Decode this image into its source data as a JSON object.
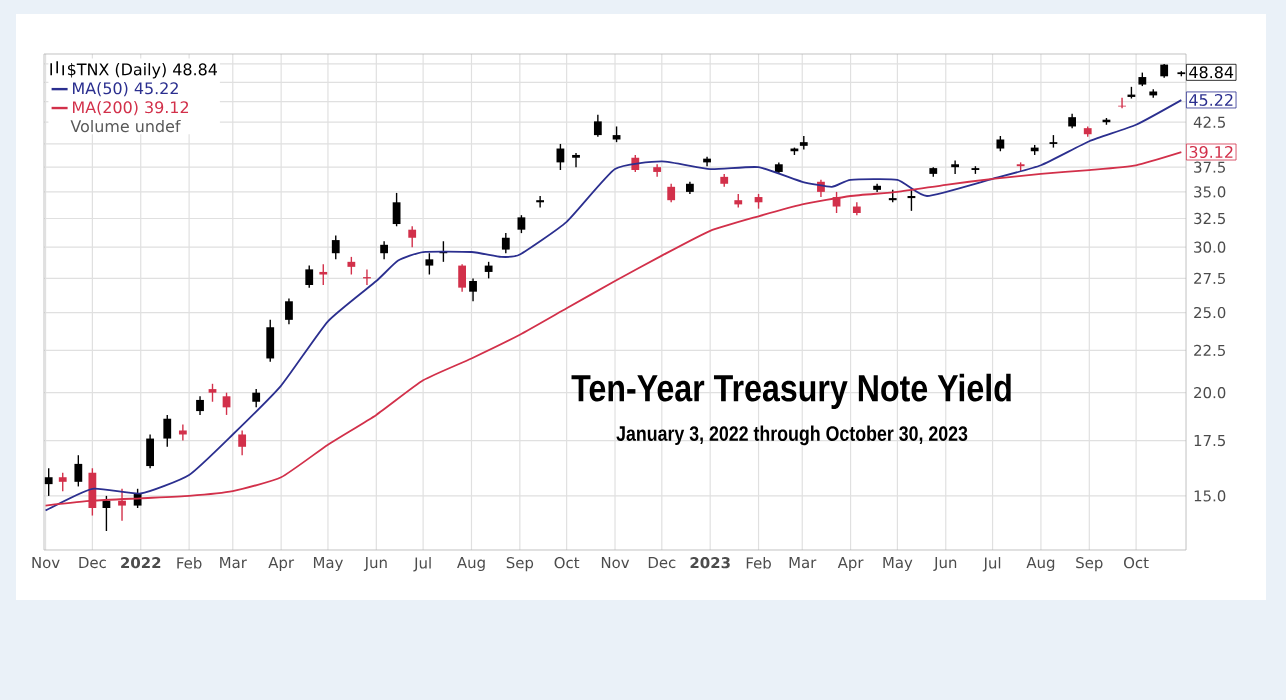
{
  "chart_data": {
    "type": "candlestick",
    "title": "Ten-Year Treasury Note Yield",
    "subtitle": "January 3, 2022 through October 30, 2023",
    "log": "y",
    "grid": true,
    "legend": "top left",
    "xlim": [
      "2021-10-31",
      "2023-11-02"
    ],
    "ylim": [
      12.9,
      51.4
    ],
    "xticks": [
      {
        "value": "2021-11-01",
        "label": "Nov"
      },
      {
        "value": "2021-12-01",
        "label": "Dec"
      },
      {
        "value": "2022-01-01",
        "label": "2022"
      },
      {
        "value": "2022-02-01",
        "label": "Feb"
      },
      {
        "value": "2022-03-01",
        "label": "Mar"
      },
      {
        "value": "2022-04-01",
        "label": "Apr"
      },
      {
        "value": "2022-05-01",
        "label": "May"
      },
      {
        "value": "2022-06-01",
        "label": "Jun"
      },
      {
        "value": "2022-07-01",
        "label": "Jul"
      },
      {
        "value": "2022-08-01",
        "label": "Aug"
      },
      {
        "value": "2022-09-01",
        "label": "Sep"
      },
      {
        "value": "2022-10-01",
        "label": "Oct"
      },
      {
        "value": "2022-11-01",
        "label": "Nov"
      },
      {
        "value": "2022-12-01",
        "label": "Dec"
      },
      {
        "value": "2023-01-01",
        "label": "2023"
      },
      {
        "value": "2023-02-01",
        "label": "Feb"
      },
      {
        "value": "2023-03-01",
        "label": "Mar"
      },
      {
        "value": "2023-04-01",
        "label": "Apr"
      },
      {
        "value": "2023-05-01",
        "label": "May"
      },
      {
        "value": "2023-06-01",
        "label": "Jun"
      },
      {
        "value": "2023-07-01",
        "label": "Jul"
      },
      {
        "value": "2023-08-01",
        "label": "Aug"
      },
      {
        "value": "2023-09-01",
        "label": "Sep"
      },
      {
        "value": "2023-10-01",
        "label": "Oct"
      }
    ],
    "yticks": [
      {
        "value": 15,
        "label": "15.0"
      },
      {
        "value": 17.5,
        "label": "17.5"
      },
      {
        "value": 20,
        "label": "20.0"
      },
      {
        "value": 22.5,
        "label": "22.5"
      },
      {
        "value": 25,
        "label": "25.0"
      },
      {
        "value": 27.5,
        "label": "27.5"
      },
      {
        "value": 30,
        "label": "30.0"
      },
      {
        "value": 32.5,
        "label": "32.5"
      },
      {
        "value": 35,
        "label": "35.0"
      },
      {
        "value": 37.5,
        "label": "37.5"
      },
      {
        "value": 40,
        "label": null
      },
      {
        "value": 42.5,
        "label": "42.5"
      },
      {
        "value": 45,
        "label": null
      },
      {
        "value": 47.5,
        "label": null
      },
      {
        "value": 50,
        "label": null
      }
    ],
    "annotations": [
      {
        "text": "48.84",
        "x": "2023-10-30",
        "y": 48.84
      },
      {
        "text": "45.22",
        "x": "2023-10-30",
        "y": 45.22
      },
      {
        "text": "39.12",
        "x": "2023-10-30",
        "y": 39.12
      },
      "Volume undef"
    ],
    "series": [
      {
        "name": "$TNX (Daily) 48.84",
        "x": [
          "2021-11-03",
          "2021-11-12",
          "2021-11-22",
          "2021-12-01",
          "2021-12-10",
          "2021-12-20",
          "2021-12-30",
          "2022-01-07",
          "2022-01-18",
          "2022-01-28",
          "2022-02-08",
          "2022-02-16",
          "2022-02-25",
          "2022-03-07",
          "2022-03-16",
          "2022-03-25",
          "2022-04-06",
          "2022-04-19",
          "2022-04-28",
          "2022-05-06",
          "2022-05-16",
          "2022-05-26",
          "2022-06-06",
          "2022-06-14",
          "2022-06-24",
          "2022-07-05",
          "2022-07-14",
          "2022-07-26",
          "2022-08-02",
          "2022-08-12",
          "2022-08-23",
          "2022-09-02",
          "2022-09-14",
          "2022-09-27",
          "2022-10-07",
          "2022-10-21",
          "2022-11-02",
          "2022-11-14",
          "2022-11-28",
          "2022-12-07",
          "2022-12-19",
          "2022-12-30",
          "2023-01-10",
          "2023-01-19",
          "2023-02-01",
          "2023-02-14",
          "2023-02-24",
          "2023-03-02",
          "2023-03-13",
          "2023-03-23",
          "2023-04-05",
          "2023-04-18",
          "2023-04-28",
          "2023-05-10",
          "2023-05-24",
          "2023-06-07",
          "2023-06-20",
          "2023-07-06",
          "2023-07-19",
          "2023-07-28",
          "2023-08-09",
          "2023-08-21",
          "2023-08-31",
          "2023-09-12",
          "2023-09-22",
          "2023-09-28",
          "2023-10-05",
          "2023-10-12",
          "2023-10-19",
          "2023-10-30"
        ],
        "ohlc": [
          [
            15.5,
            16.2,
            15.0,
            15.8
          ],
          [
            15.8,
            16.0,
            15.2,
            15.6
          ],
          [
            15.6,
            16.8,
            15.4,
            16.4
          ],
          [
            16.0,
            16.2,
            14.2,
            14.5
          ],
          [
            14.5,
            15.0,
            13.6,
            14.8
          ],
          [
            14.8,
            15.3,
            14.0,
            14.6
          ],
          [
            14.6,
            15.3,
            14.5,
            15.1
          ],
          [
            16.3,
            17.8,
            16.2,
            17.6
          ],
          [
            17.6,
            18.8,
            17.2,
            18.6
          ],
          [
            18.0,
            18.3,
            17.5,
            17.8
          ],
          [
            19.0,
            19.8,
            18.8,
            19.6
          ],
          [
            20.2,
            20.5,
            19.5,
            20.0
          ],
          [
            19.8,
            20.0,
            18.8,
            19.2
          ],
          [
            17.8,
            18.0,
            16.8,
            17.2
          ],
          [
            19.5,
            20.2,
            19.2,
            20.0
          ],
          [
            22.0,
            24.5,
            21.8,
            24.0
          ],
          [
            24.5,
            26.0,
            24.2,
            25.8
          ],
          [
            27.0,
            28.5,
            26.8,
            28.2
          ],
          [
            28.0,
            28.6,
            27.0,
            27.8
          ],
          [
            29.5,
            31.0,
            29.0,
            30.6
          ],
          [
            28.8,
            29.2,
            27.8,
            28.4
          ],
          [
            27.6,
            28.2,
            27.0,
            27.5
          ],
          [
            29.5,
            30.5,
            29.0,
            30.2
          ],
          [
            32.0,
            34.9,
            31.8,
            34.0
          ],
          [
            31.5,
            31.8,
            30.0,
            30.8
          ],
          [
            28.5,
            29.5,
            27.8,
            29.0
          ],
          [
            29.5,
            30.5,
            28.8,
            29.6
          ],
          [
            28.5,
            28.6,
            26.5,
            26.8
          ],
          [
            26.5,
            27.5,
            25.8,
            27.3
          ],
          [
            28.0,
            28.8,
            27.5,
            28.5
          ],
          [
            29.8,
            31.2,
            29.5,
            30.8
          ],
          [
            31.5,
            32.8,
            31.2,
            32.6
          ],
          [
            34.0,
            34.6,
            33.5,
            34.2
          ],
          [
            38.0,
            40.0,
            37.2,
            39.5
          ],
          [
            38.5,
            39.0,
            37.5,
            38.8
          ],
          [
            41.0,
            43.4,
            40.8,
            42.6
          ],
          [
            40.5,
            42.0,
            40.2,
            41.0
          ],
          [
            38.5,
            38.8,
            37.0,
            37.2
          ],
          [
            37.5,
            37.8,
            36.5,
            37.0
          ],
          [
            35.5,
            35.8,
            34.0,
            34.2
          ],
          [
            35.0,
            36.0,
            34.8,
            35.8
          ],
          [
            38.0,
            38.6,
            37.6,
            38.4
          ],
          [
            36.5,
            36.8,
            35.5,
            35.8
          ],
          [
            34.2,
            34.8,
            33.5,
            33.8
          ],
          [
            34.5,
            34.8,
            33.4,
            34.0
          ],
          [
            37.0,
            38.0,
            36.8,
            37.8
          ],
          [
            39.2,
            39.6,
            38.8,
            39.5
          ],
          [
            39.8,
            40.9,
            39.4,
            40.2
          ],
          [
            36.0,
            36.2,
            34.5,
            35.0
          ],
          [
            34.5,
            35.0,
            33.0,
            33.6
          ],
          [
            33.6,
            34.0,
            32.8,
            33.0
          ],
          [
            35.2,
            35.8,
            35.0,
            35.6
          ],
          [
            34.2,
            35.2,
            34.0,
            34.4
          ],
          [
            34.4,
            35.2,
            33.2,
            34.6
          ],
          [
            36.8,
            37.5,
            36.5,
            37.4
          ],
          [
            37.5,
            38.2,
            36.8,
            37.8
          ],
          [
            37.2,
            37.6,
            36.8,
            37.4
          ],
          [
            39.5,
            40.9,
            39.2,
            40.5
          ],
          [
            37.8,
            38.0,
            37.0,
            37.6
          ],
          [
            39.2,
            39.9,
            38.8,
            39.6
          ],
          [
            40.0,
            41.0,
            39.6,
            40.2
          ],
          [
            42.0,
            43.5,
            41.8,
            43.1
          ],
          [
            41.8,
            42.0,
            40.8,
            41.1
          ],
          [
            42.5,
            43.0,
            42.2,
            42.8
          ],
          [
            44.5,
            45.5,
            44.2,
            44.4
          ],
          [
            45.6,
            46.9,
            45.4,
            45.9
          ],
          [
            47.2,
            48.8,
            47.0,
            48.2
          ],
          [
            45.8,
            46.6,
            45.5,
            46.3
          ],
          [
            48.3,
            50.0,
            48.1,
            49.9
          ],
          [
            48.6,
            49.0,
            48.3,
            48.84
          ]
        ],
        "colors": [
          "#000000",
          "#d2304a",
          "#000000",
          "#d2304a",
          "#000000",
          "#d2304a",
          "#000000",
          "#000000",
          "#000000",
          "#d2304a",
          "#000000",
          "#d2304a",
          "#d2304a",
          "#d2304a",
          "#000000",
          "#000000",
          "#000000",
          "#000000",
          "#d2304a",
          "#000000",
          "#d2304a",
          "#d2304a",
          "#000000",
          "#000000",
          "#d2304a",
          "#000000",
          "#000000",
          "#d2304a",
          "#000000",
          "#000000",
          "#000000",
          "#000000",
          "#000000",
          "#000000",
          "#000000",
          "#000000",
          "#000000",
          "#d2304a",
          "#d2304a",
          "#d2304a",
          "#000000",
          "#000000",
          "#d2304a",
          "#d2304a",
          "#d2304a",
          "#000000",
          "#000000",
          "#000000",
          "#d2304a",
          "#d2304a",
          "#d2304a",
          "#000000",
          "#000000",
          "#000000",
          "#000000",
          "#000000",
          "#000000",
          "#000000",
          "#d2304a",
          "#000000",
          "#000000",
          "#000000",
          "#d2304a",
          "#000000",
          "#d2304a",
          "#000000",
          "#000000",
          "#000000",
          "#000000",
          "#000000"
        ]
      },
      {
        "name": "MA(50) 45.22",
        "type": "line",
        "color": "#2b2f8f",
        "x": [
          "2021-11-01",
          "2021-12-01",
          "2022-01-01",
          "2022-02-01",
          "2022-03-01",
          "2022-04-01",
          "2022-05-01",
          "2022-06-01",
          "2022-06-15",
          "2022-07-01",
          "2022-08-01",
          "2022-08-20",
          "2022-09-01",
          "2022-10-01",
          "2022-11-01",
          "2022-12-01",
          "2023-01-01",
          "2023-02-01",
          "2023-03-01",
          "2023-03-20",
          "2023-04-01",
          "2023-05-01",
          "2023-05-20",
          "2023-07-01",
          "2023-08-01",
          "2023-09-01",
          "2023-10-01",
          "2023-10-30"
        ],
        "values": [
          14.4,
          15.3,
          15.1,
          15.9,
          17.8,
          20.4,
          24.4,
          27.3,
          28.9,
          29.6,
          29.6,
          29.2,
          29.4,
          32.2,
          37.3,
          38.1,
          37.3,
          37.5,
          36.0,
          35.5,
          36.2,
          36.2,
          34.6,
          36.3,
          37.7,
          40.3,
          42.2,
          45.2
        ]
      },
      {
        "name": "MA(200) 39.12",
        "type": "line",
        "color": "#d2304a",
        "x": [
          "2021-11-01",
          "2021-12-01",
          "2022-01-01",
          "2022-02-01",
          "2022-03-01",
          "2022-04-01",
          "2022-05-01",
          "2022-06-01",
          "2022-07-01",
          "2022-08-01",
          "2022-09-01",
          "2022-10-01",
          "2022-11-01",
          "2022-12-01",
          "2023-01-01",
          "2023-02-01",
          "2023-03-01",
          "2023-04-01",
          "2023-05-01",
          "2023-06-01",
          "2023-07-01",
          "2023-08-01",
          "2023-09-01",
          "2023-10-01",
          "2023-10-30"
        ],
        "values": [
          14.6,
          14.8,
          14.9,
          15.0,
          15.2,
          15.8,
          17.3,
          18.8,
          20.7,
          22.0,
          23.5,
          25.3,
          27.3,
          29.3,
          31.4,
          32.7,
          33.8,
          34.6,
          35.0,
          35.7,
          36.3,
          36.8,
          37.2,
          37.7,
          39.1
        ]
      }
    ]
  }
}
